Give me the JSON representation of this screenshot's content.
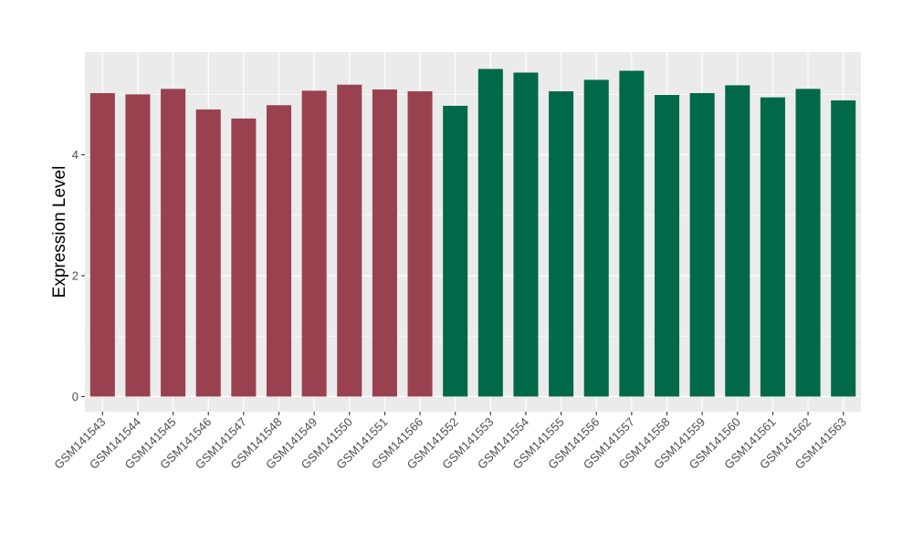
{
  "chart_data": {
    "type": "bar",
    "title": "",
    "xlabel": "",
    "ylabel": "Expression Level",
    "ylim": [
      -0.25,
      5.7
    ],
    "yticks": [
      0,
      2,
      4
    ],
    "grid": true,
    "legend": "none",
    "categories": [
      "GSM141543",
      "GSM141544",
      "GSM141545",
      "GSM141546",
      "GSM141547",
      "GSM141548",
      "GSM141549",
      "GSM141550",
      "GSM141551",
      "GSM141566",
      "GSM141552",
      "GSM141553",
      "GSM141554",
      "GSM141555",
      "GSM141556",
      "GSM141557",
      "GSM141558",
      "GSM141559",
      "GSM141560",
      "GSM141561",
      "GSM141562",
      "GSM141563"
    ],
    "values": [
      5.02,
      5.0,
      5.09,
      4.75,
      4.6,
      4.82,
      5.06,
      5.16,
      5.08,
      5.05,
      4.81,
      5.42,
      5.36,
      5.05,
      5.24,
      5.39,
      4.99,
      5.02,
      5.15,
      4.95,
      5.09,
      4.9
    ],
    "groups": [
      0,
      0,
      0,
      0,
      0,
      0,
      0,
      0,
      0,
      0,
      1,
      1,
      1,
      1,
      1,
      1,
      1,
      1,
      1,
      1,
      1,
      1
    ],
    "colors": [
      "#9a4150",
      "#00694a"
    ],
    "panel_bg": "#ebebeb",
    "grid_color": "#ffffff"
  }
}
